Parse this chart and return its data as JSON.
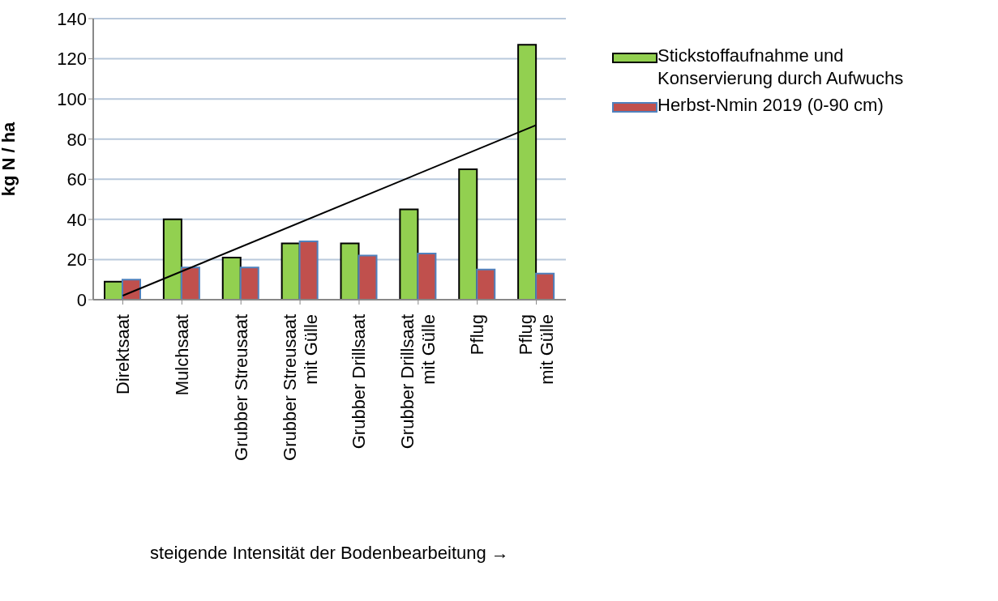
{
  "chart_data": {
    "type": "bar",
    "ylabel": "kg N / ha",
    "xlabel": "steigende Intensität der Bodenbearbeitung →",
    "categories": [
      "Direktsaat",
      "Mulchsaat",
      "Grubber Streusaat",
      "Grubber Streusaat\nmit Gülle",
      "Grubber Drillsaat",
      "Grubber Drillsaat\nmit Gülle",
      "Pflug",
      "Pflug\nmit Gülle"
    ],
    "series": [
      {
        "name": "Stickstoffaufnahme und Konservierung durch Aufwuchs",
        "color": "#92d050",
        "values": [
          9,
          40,
          21,
          28,
          28,
          45,
          65,
          127
        ]
      },
      {
        "name": "Herbst-Nmin 2019 (0-90 cm)",
        "color": "#c0504d",
        "values": [
          10,
          16,
          16,
          29,
          22,
          23,
          15,
          13
        ]
      },
      {
        "type": "line",
        "color": "#000000",
        "x": [
          "Direktsaat",
          "Pflug\nmit Gülle"
        ],
        "values": [
          2,
          87
        ]
      }
    ],
    "ylim": [
      0,
      140
    ],
    "yticks": [
      0,
      20,
      40,
      60,
      80,
      100,
      120,
      140
    ],
    "grid": "y",
    "legend": "top right"
  }
}
